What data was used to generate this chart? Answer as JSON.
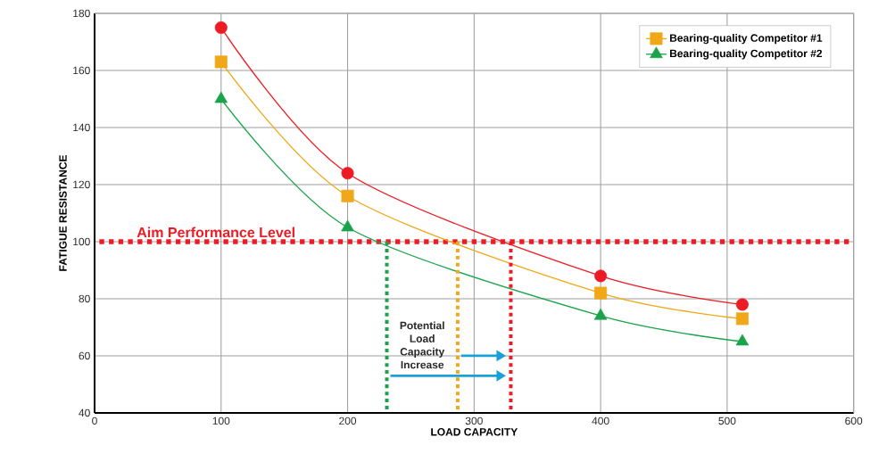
{
  "chart_data": {
    "type": "line",
    "xlabel": "LOAD CAPACITY",
    "ylabel": "FATIGUE RESISTANCE",
    "xlim": [
      0,
      600
    ],
    "ylim": [
      40,
      180
    ],
    "xticks": [
      0,
      100,
      200,
      300,
      400,
      500,
      600
    ],
    "yticks": [
      40,
      60,
      80,
      100,
      120,
      140,
      160,
      180
    ],
    "grid": true,
    "legend": "top right",
    "line_style": "solid",
    "series": [
      {
        "color": "#ed1c24",
        "marker": "circle",
        "x": [
          100,
          200,
          400,
          512
        ],
        "values": [
          175,
          124,
          88,
          78
        ]
      },
      {
        "name": "Bearing-quality Competitor #1",
        "color": "#f0a818",
        "marker": "square",
        "x": [
          100,
          200,
          400,
          512
        ],
        "values": [
          163,
          116,
          82,
          73
        ]
      },
      {
        "name": "Bearing-quality Competitor #2",
        "color": "#1aa34a",
        "marker": "triangle",
        "x": [
          100,
          200,
          400,
          512
        ],
        "values": [
          150,
          105,
          74,
          65
        ]
      },
      {
        "color": "#1aa34a",
        "marker": "none",
        "line_style": "dotted",
        "x": [
          231,
          231
        ],
        "values": [
          40,
          100
        ]
      },
      {
        "color": "#f0a818",
        "marker": "none",
        "line_style": "dotted",
        "x": [
          287,
          287
        ],
        "values": [
          40,
          100
        ]
      },
      {
        "color": "#ed1c24",
        "marker": "none",
        "line_style": "dotted",
        "x": [
          329,
          329
        ],
        "values": [
          40,
          100
        ]
      }
    ],
    "ref_lines": [
      {
        "axis": "y",
        "value": 100,
        "label": "Aim Performance Level",
        "color": "#ed1c24",
        "line_style": "dotted"
      }
    ],
    "annotations": [
      "Potential Load Capacity Increase"
    ]
  }
}
